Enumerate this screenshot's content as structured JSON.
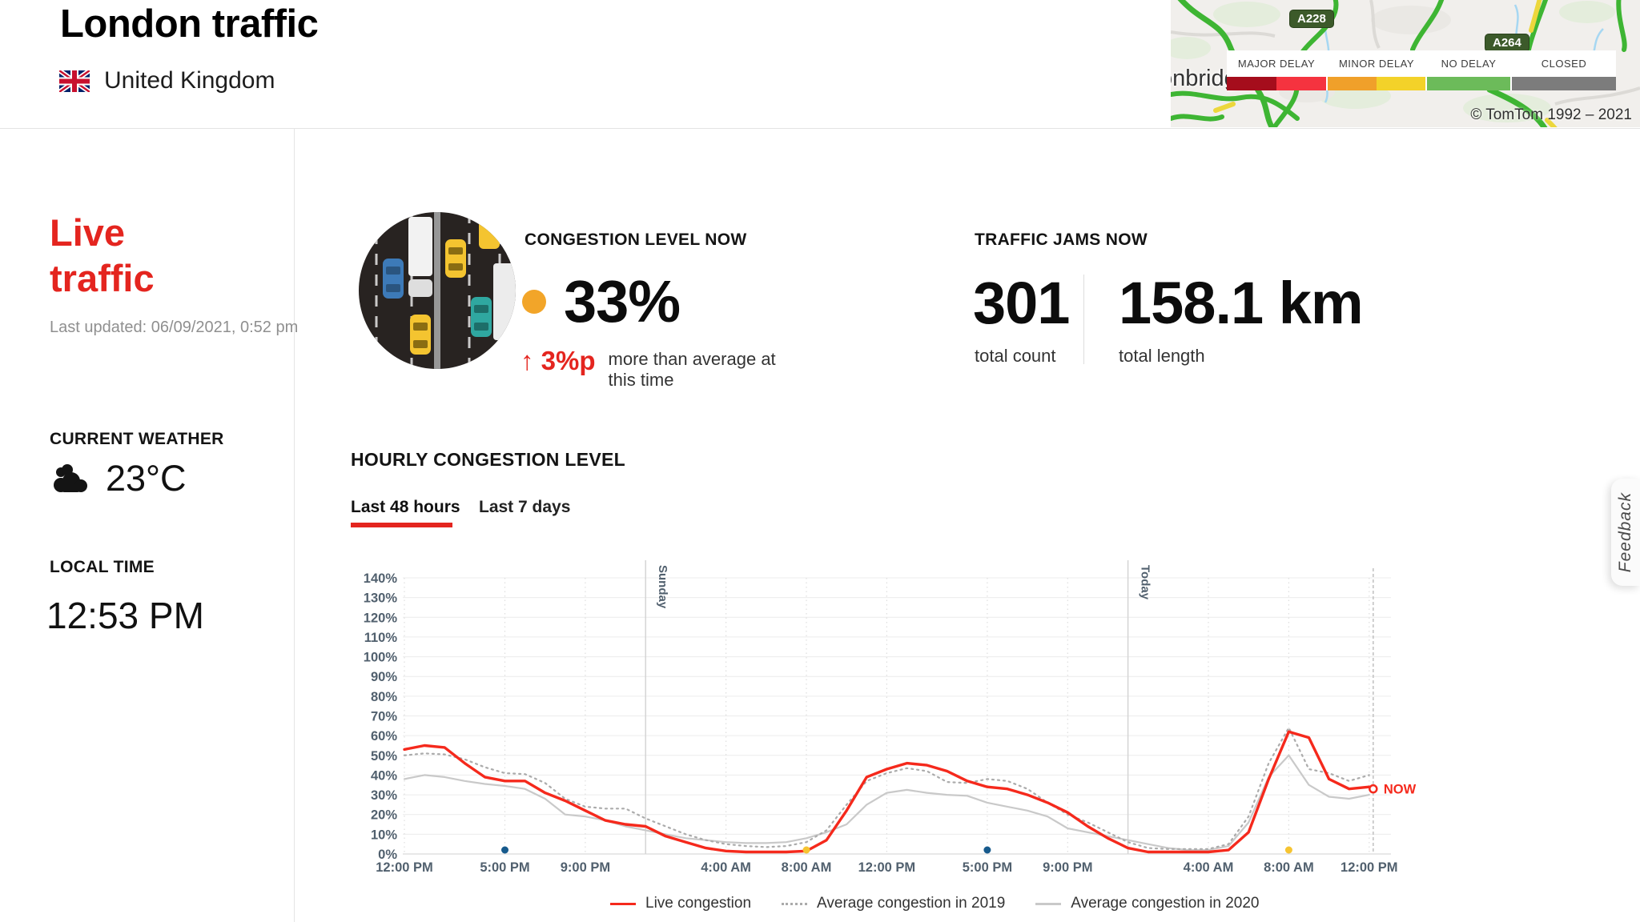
{
  "header": {
    "title": "London traffic",
    "country": "United Kingdom"
  },
  "map": {
    "city_label": "onbridge",
    "shield_1": "A228",
    "shield_2": "A264",
    "copyright": "© TomTom 1992 – 2021",
    "legend": [
      {
        "label": "MAJOR DELAY",
        "colors": [
          "#a50d1c",
          "#f5333f"
        ]
      },
      {
        "label": "MINOR DELAY",
        "colors": [
          "#f0a02a",
          "#f3d229"
        ]
      },
      {
        "label": "NO DELAY",
        "colors": [
          "#6cbb5a"
        ]
      },
      {
        "label": "CLOSED",
        "colors": [
          "#7c7c7c"
        ]
      }
    ]
  },
  "sidebar": {
    "live_title": "Live\ntraffic",
    "last_updated": "Last updated: 06/09/2021, 0:52 pm",
    "weather_heading": "CURRENT WEATHER",
    "temperature": "23°C",
    "local_time_heading": "LOCAL TIME",
    "local_time": "12:53 PM"
  },
  "stats": {
    "congestion": {
      "heading": "CONGESTION LEVEL NOW",
      "value": "33%",
      "dot_color": "#f2a529",
      "delta_arrow": "↑",
      "delta": "3%p",
      "delta_note": "more than average at this time"
    },
    "jams": {
      "heading": "TRAFFIC JAMS NOW",
      "count": "301",
      "count_label": "total count",
      "length": "158.1 km",
      "length_label": "total length"
    }
  },
  "chart_section": {
    "heading": "HOURLY CONGESTION LEVEL",
    "tab_active": "Last 48 hours",
    "tab_inactive": "Last 7 days",
    "accent_color": "#e4251f"
  },
  "chart_data": {
    "type": "line",
    "title": "Hourly congestion level – last 48 hours",
    "x_unit": "hours since Saturday 12:00 PM",
    "ylim": [
      0,
      140
    ],
    "y_ticks": [
      0,
      10,
      20,
      30,
      40,
      50,
      60,
      70,
      80,
      90,
      100,
      110,
      120,
      130,
      140
    ],
    "y_tick_labels": [
      "0%",
      "10%",
      "20%",
      "30%",
      "40%",
      "50%",
      "60%",
      "70%",
      "80%",
      "90%",
      "100%",
      "110%",
      "120%",
      "130%",
      "140%"
    ],
    "x_tick_hours": [
      0,
      5,
      9,
      16,
      20,
      24,
      29,
      33,
      40,
      44,
      48
    ],
    "x_tick_labels": [
      "12:00 PM",
      "5:00 PM",
      "9:00 PM",
      "4:00 AM",
      "8:00 AM",
      "12:00 PM",
      "5:00 PM",
      "9:00 PM",
      "4:00 AM",
      "8:00 AM",
      "12:00 PM"
    ],
    "day_separators": [
      {
        "hour": 12,
        "label": "Sunday"
      },
      {
        "hour": 36,
        "label": "Today"
      }
    ],
    "axis_markers": [
      {
        "hour": 5,
        "color": "#175a8c"
      },
      {
        "hour": 20,
        "color": "#f6c431"
      },
      {
        "hour": 29,
        "color": "#175a8c"
      },
      {
        "hour": 44,
        "color": "#f6c431"
      }
    ],
    "now": {
      "hour": 48.2,
      "value": 33,
      "label": "NOW",
      "color": "#f5291c",
      "line_color": "#c4c4c4"
    },
    "series": [
      {
        "name": "Live congestion",
        "color": "#f5291c",
        "style": "solid",
        "width": 3.4,
        "values": [
          53,
          55,
          54,
          46,
          39,
          37,
          37,
          31,
          27,
          22,
          17,
          15,
          14,
          9,
          6,
          3,
          1.5,
          1,
          1,
          1,
          1.5,
          7,
          22,
          39,
          43,
          46,
          45,
          42,
          37,
          34,
          33,
          30,
          26,
          21,
          14,
          8,
          3,
          1,
          1,
          1,
          1,
          2,
          11,
          38,
          62,
          59,
          38,
          33,
          34
        ]
      },
      {
        "name": "Average congestion in 2019",
        "color": "#ababab",
        "style": "dotted",
        "width": 2.2,
        "values": [
          50,
          51,
          50.5,
          48,
          44,
          41,
          40.5,
          36,
          28,
          24,
          23,
          23,
          18,
          14,
          10,
          7,
          5,
          4,
          3.5,
          4,
          6,
          12,
          25,
          37,
          41,
          43.5,
          42,
          36.5,
          36,
          38,
          37,
          33,
          26,
          20,
          16,
          11,
          6,
          3,
          2.5,
          2.5,
          2.5,
          5,
          19,
          46,
          64,
          43,
          41,
          37,
          40
        ]
      },
      {
        "name": "Average congestion in 2020",
        "color": "#c9c9c9",
        "style": "solid",
        "width": 2.2,
        "values": [
          38,
          40,
          39,
          37,
          35.5,
          34.5,
          33,
          28,
          20,
          19,
          17,
          14,
          12,
          10,
          8,
          7,
          6,
          5.5,
          5.5,
          6,
          8,
          11,
          15,
          25,
          31,
          32.5,
          31,
          30,
          29.5,
          26,
          24,
          22,
          19,
          13,
          11,
          9,
          7,
          5,
          3,
          2,
          2,
          4,
          16,
          39,
          50,
          35,
          29,
          28,
          30
        ]
      }
    ],
    "legend_position": "bottom",
    "grid": true
  },
  "feedback_label": "Feedback"
}
